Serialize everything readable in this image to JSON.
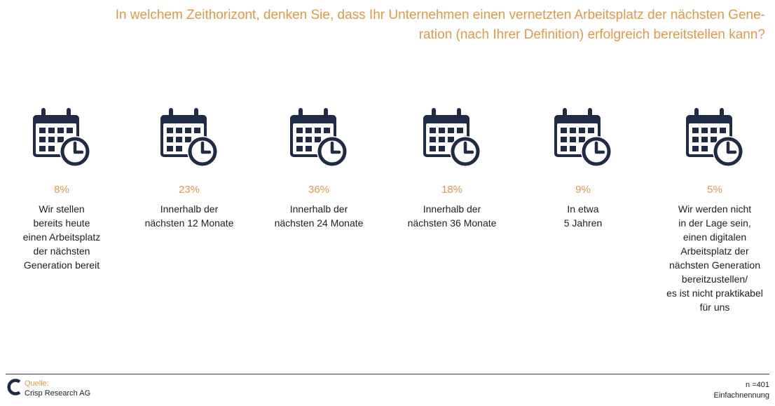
{
  "title_lines": [
    "In welchem Zeithorizont, denken Sie, dass Ihr Unternehmen einen vernetzten Arbeitsplatz der nächsten Gene-",
    "ration (nach Ihrer Definition) erfolgreich bereitstellen kann?"
  ],
  "icon_name": "calendar-clock-icon",
  "colors": {
    "accent": "#dd9a4a",
    "icon": "#1f2a44",
    "text": "#1e1e1e"
  },
  "chart_data": {
    "type": "table",
    "unit": "%",
    "items": [
      {
        "percent_label": "8%",
        "value": 8,
        "lines": [
          "Wir stellen",
          "bereits heute",
          "einen Arbeitsplatz",
          "der nächsten",
          "Generation bereit"
        ]
      },
      {
        "percent_label": "23%",
        "value": 23,
        "lines": [
          "Innerhalb der",
          "nächsten 12 Monate"
        ]
      },
      {
        "percent_label": "36%",
        "value": 36,
        "lines": [
          "Innerhalb der",
          "nächsten 24 Monate"
        ]
      },
      {
        "percent_label": "18%",
        "value": 18,
        "lines": [
          "Innerhalb der",
          "nächsten 36 Monate"
        ]
      },
      {
        "percent_label": "9%",
        "value": 9,
        "lines": [
          "In etwa",
          "5 Jahren"
        ]
      },
      {
        "percent_label": "5%",
        "value": 5,
        "lines": [
          "Wir werden nicht",
          "in der Lage sein,",
          "einen digitalen",
          "Arbeitsplatz der",
          "nächsten Generation",
          "bereitzustellen/",
          "es ist nicht praktikabel",
          "für uns"
        ]
      }
    ]
  },
  "footer": {
    "source_label": "Quelle:",
    "source_name": "Crisp Research AG",
    "n_label": "n =401",
    "answer_type": "Einfachnennung"
  }
}
